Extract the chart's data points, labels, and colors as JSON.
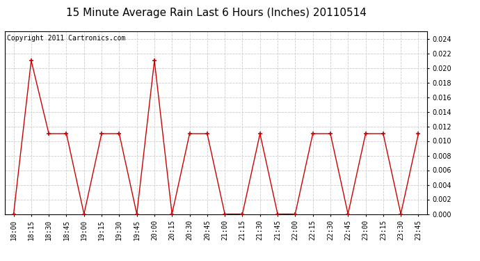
{
  "title": "15 Minute Average Rain Last 6 Hours (Inches) 20110514",
  "copyright_text": "Copyright 2011 Cartronics.com",
  "x_labels": [
    "18:00",
    "18:15",
    "18:30",
    "18:45",
    "19:00",
    "19:15",
    "19:30",
    "19:45",
    "20:00",
    "20:15",
    "20:30",
    "20:45",
    "21:00",
    "21:15",
    "21:30",
    "21:45",
    "22:00",
    "22:15",
    "22:30",
    "22:45",
    "23:00",
    "23:15",
    "23:30",
    "23:45"
  ],
  "y_values": [
    0.0,
    0.021,
    0.011,
    0.011,
    0.0,
    0.011,
    0.011,
    0.0,
    0.021,
    0.0,
    0.011,
    0.011,
    0.0,
    0.0,
    0.011,
    0.0,
    0.0,
    0.011,
    0.011,
    0.0,
    0.011,
    0.011,
    0.0,
    0.011
  ],
  "ylim": [
    0.0,
    0.025
  ],
  "yticks": [
    0.0,
    0.002,
    0.004,
    0.006,
    0.008,
    0.01,
    0.012,
    0.014,
    0.016,
    0.018,
    0.02,
    0.022,
    0.024
  ],
  "line_color": "#cc0000",
  "marker": "+",
  "grid_color": "#cccccc",
  "bg_color": "#ffffff",
  "plot_bg_color": "#ffffff",
  "title_fontsize": 11,
  "copyright_fontsize": 7,
  "tick_fontsize": 7,
  "ytick_fontsize": 7
}
